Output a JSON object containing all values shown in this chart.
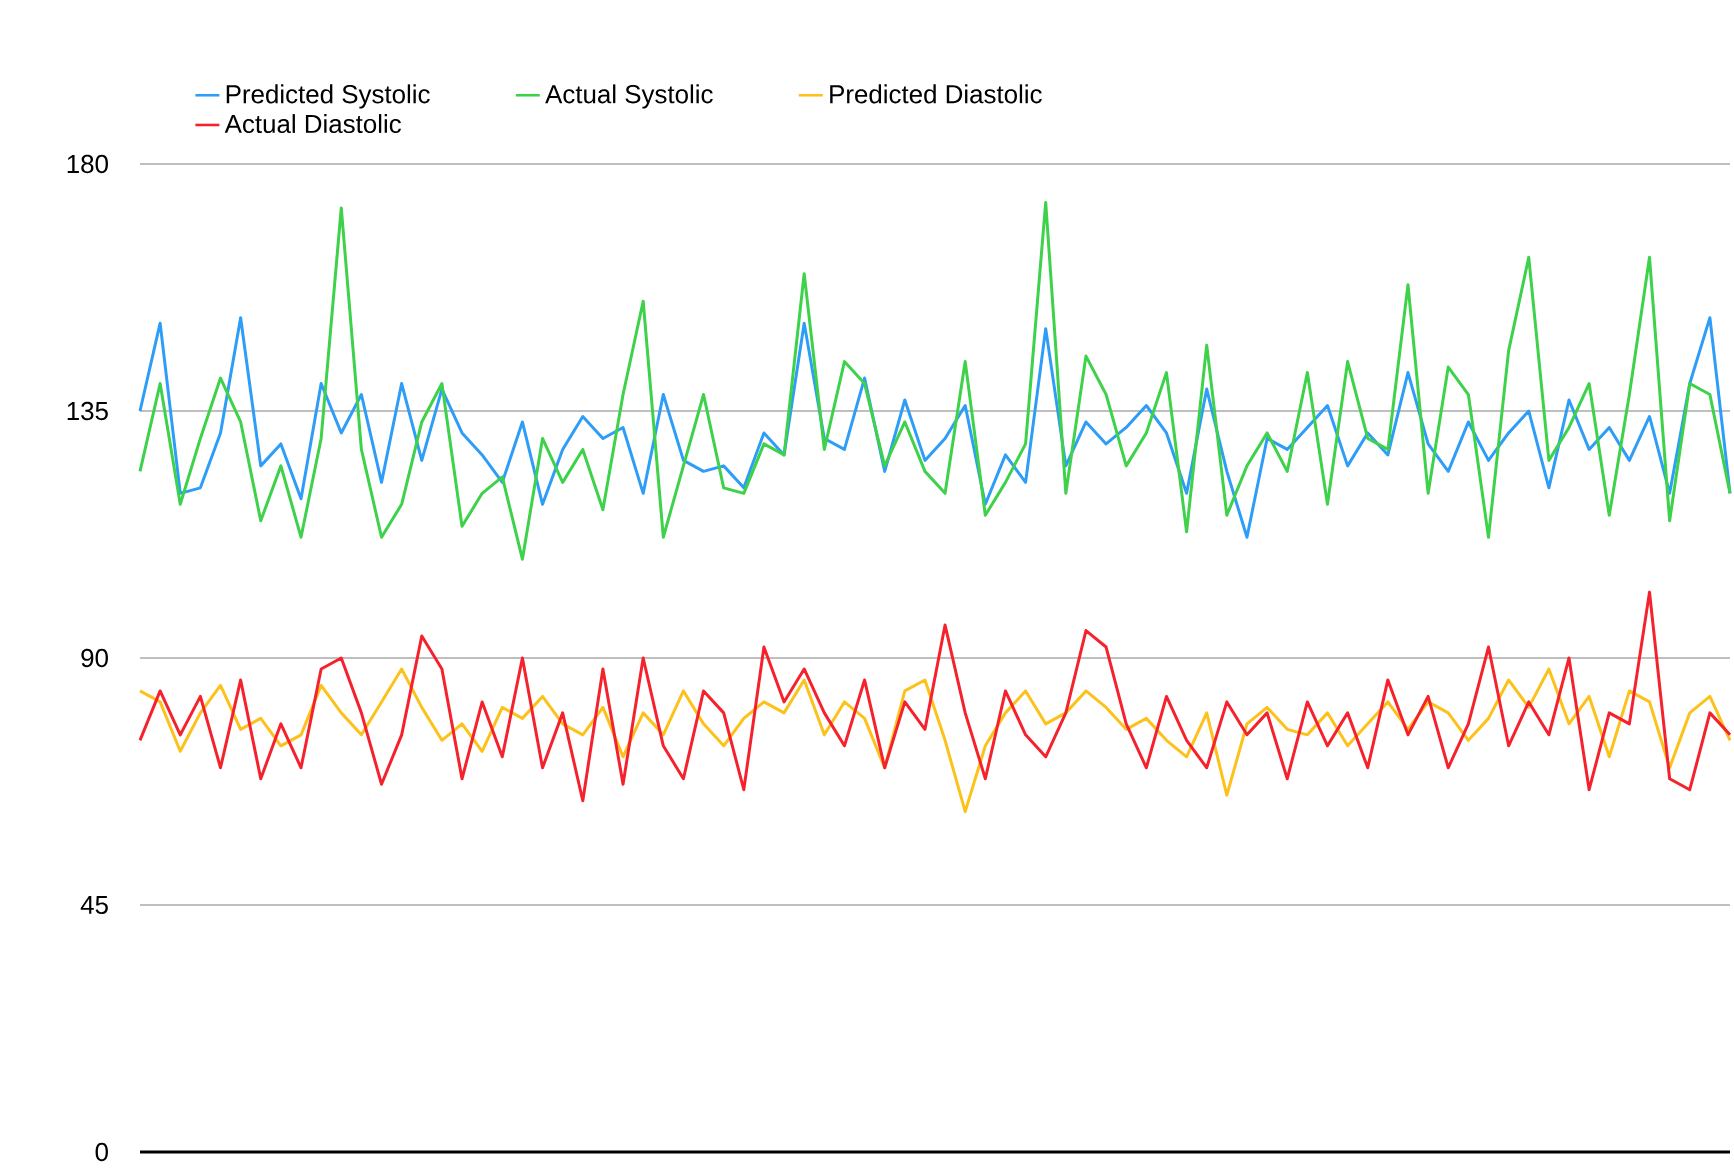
{
  "chart_data": {
    "type": "line",
    "categories": [
      null,
      null,
      null,
      null,
      null,
      null,
      null,
      null,
      null,
      null,
      null,
      null,
      null,
      null,
      null,
      null,
      null,
      null,
      null,
      null,
      null,
      null,
      null,
      null,
      null,
      null,
      null,
      null,
      null,
      null,
      null,
      null,
      null,
      null,
      null,
      null,
      null,
      null,
      null,
      null,
      null,
      null,
      null,
      null,
      null,
      null,
      null,
      null,
      null,
      null,
      null,
      null,
      null,
      null,
      null,
      null,
      null,
      null,
      null,
      null,
      null,
      null,
      null,
      null,
      null,
      null,
      null,
      null,
      null,
      null,
      null,
      null,
      null,
      null,
      null,
      null,
      null,
      null,
      null,
      null
    ],
    "series": [
      {
        "name": "Predicted Systolic",
        "color": "#2e9df7",
        "values": [
          135,
          151,
          120,
          121,
          131,
          152,
          125,
          129,
          119,
          140,
          131,
          138,
          122,
          140,
          126,
          139,
          131,
          127,
          122,
          133,
          118,
          128,
          134,
          130,
          132,
          120,
          138,
          126,
          124,
          125,
          121,
          131,
          127,
          151,
          130,
          128,
          141,
          124,
          137,
          126,
          130,
          136,
          118,
          127,
          122,
          150,
          125,
          133,
          129,
          132,
          136,
          131,
          120,
          139,
          124,
          112,
          130,
          128,
          132,
          136,
          125,
          131,
          127,
          142,
          129,
          124,
          133,
          126,
          131,
          135,
          121,
          137,
          128,
          132,
          126,
          134,
          120,
          140,
          152,
          120
        ]
      },
      {
        "name": "Actual Systolic",
        "color": "#3ed14a",
        "values": [
          124,
          140,
          118,
          130,
          141,
          133,
          115,
          125,
          112,
          130,
          172,
          128,
          112,
          118,
          133,
          140,
          114,
          120,
          123,
          108,
          130,
          122,
          128,
          117,
          138,
          155,
          112,
          125,
          138,
          121,
          120,
          129,
          127,
          160,
          128,
          144,
          140,
          125,
          133,
          124,
          120,
          144,
          116,
          122,
          129,
          173,
          120,
          145,
          138,
          125,
          131,
          142,
          113,
          147,
          116,
          125,
          131,
          124,
          142,
          118,
          144,
          130,
          128,
          158,
          120,
          143,
          138,
          112,
          146,
          163,
          126,
          132,
          140,
          116,
          138,
          163,
          115,
          140,
          138,
          120
        ]
      },
      {
        "name": "Predicted Diastolic",
        "color": "#fcc21b",
        "values": [
          84,
          82,
          73,
          80,
          85,
          77,
          79,
          74,
          76,
          85,
          80,
          76,
          82,
          88,
          81,
          75,
          78,
          73,
          81,
          79,
          83,
          78,
          76,
          81,
          72,
          80,
          76,
          84,
          78,
          74,
          79,
          82,
          80,
          86,
          76,
          82,
          79,
          70,
          84,
          86,
          75,
          62,
          74,
          80,
          84,
          78,
          80,
          84,
          81,
          77,
          79,
          75,
          72,
          80,
          65,
          78,
          81,
          77,
          76,
          80,
          74,
          78,
          82,
          77,
          82,
          80,
          75,
          79,
          86,
          81,
          88,
          78,
          83,
          72,
          84,
          82,
          70,
          80,
          83,
          75
        ]
      },
      {
        "name": "Actual Diastolic",
        "color": "#f5222d",
        "values": [
          75,
          84,
          76,
          83,
          70,
          86,
          68,
          78,
          70,
          88,
          90,
          80,
          67,
          76,
          94,
          88,
          68,
          82,
          72,
          90,
          70,
          80,
          64,
          88,
          67,
          90,
          74,
          68,
          84,
          80,
          66,
          92,
          82,
          88,
          80,
          74,
          86,
          70,
          82,
          77,
          96,
          80,
          68,
          84,
          76,
          72,
          80,
          95,
          92,
          78,
          70,
          83,
          75,
          70,
          82,
          76,
          80,
          68,
          82,
          74,
          80,
          70,
          86,
          76,
          83,
          70,
          78,
          92,
          74,
          82,
          76,
          90,
          66,
          80,
          78,
          102,
          68,
          66,
          80,
          76
        ]
      }
    ],
    "ylim": [
      0,
      180
    ],
    "yticks": [
      0,
      45,
      90,
      135,
      180
    ],
    "grid": "y",
    "legend": "top left",
    "tick_labels": "y"
  }
}
